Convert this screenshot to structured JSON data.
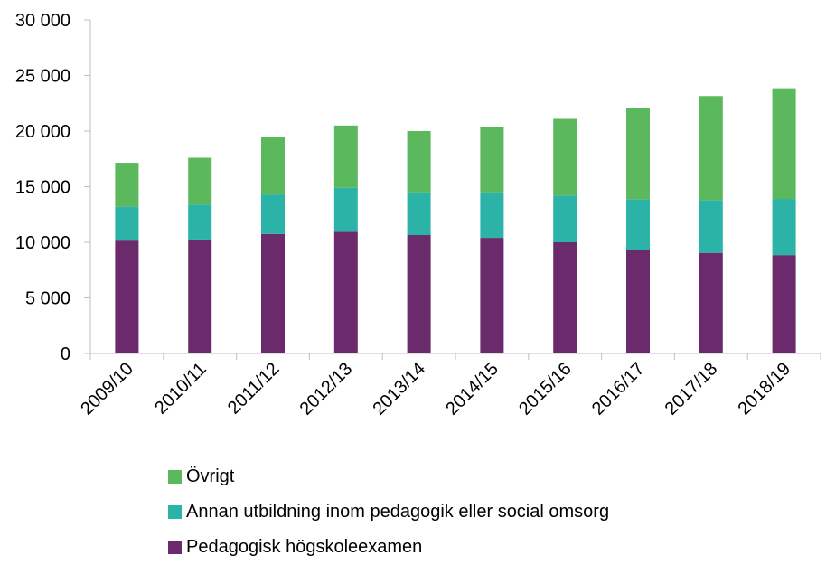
{
  "chart_data": {
    "type": "bar",
    "stacked": true,
    "categories": [
      "2009/10",
      "2010/11",
      "2011/12",
      "2012/13",
      "2013/14",
      "2014/15",
      "2015/16",
      "2016/17",
      "2017/18",
      "2018/19"
    ],
    "series": [
      {
        "name": "Pedagogisk högskoleexamen",
        "color": "#6b2a6b",
        "values": [
          10150,
          10250,
          10750,
          10950,
          10650,
          10400,
          10000,
          9350,
          9050,
          8850
        ]
      },
      {
        "name": "Annan utbildning inom pedagogik eller social omsorg",
        "color": "#2bb3a8",
        "values": [
          3050,
          3150,
          3550,
          3950,
          3850,
          4100,
          4200,
          4500,
          4750,
          5050
        ]
      },
      {
        "name": "Övrigt",
        "color": "#5cb85c",
        "values": [
          3950,
          4200,
          5150,
          5600,
          5500,
          5900,
          6900,
          8200,
          9350,
          9950
        ]
      }
    ],
    "ylim": [
      0,
      30000
    ],
    "yticks": [
      0,
      5000,
      10000,
      15000,
      20000,
      25000,
      30000
    ],
    "ytick_labels": [
      "0",
      "5 000",
      "10 000",
      "15 000",
      "20 000",
      "25 000",
      "30 000"
    ],
    "grid": false,
    "legend_position": "bottom",
    "legend_order": [
      "Övrigt",
      "Annan utbildning inom pedagogik eller social omsorg",
      "Pedagogisk högskoleexamen"
    ]
  }
}
